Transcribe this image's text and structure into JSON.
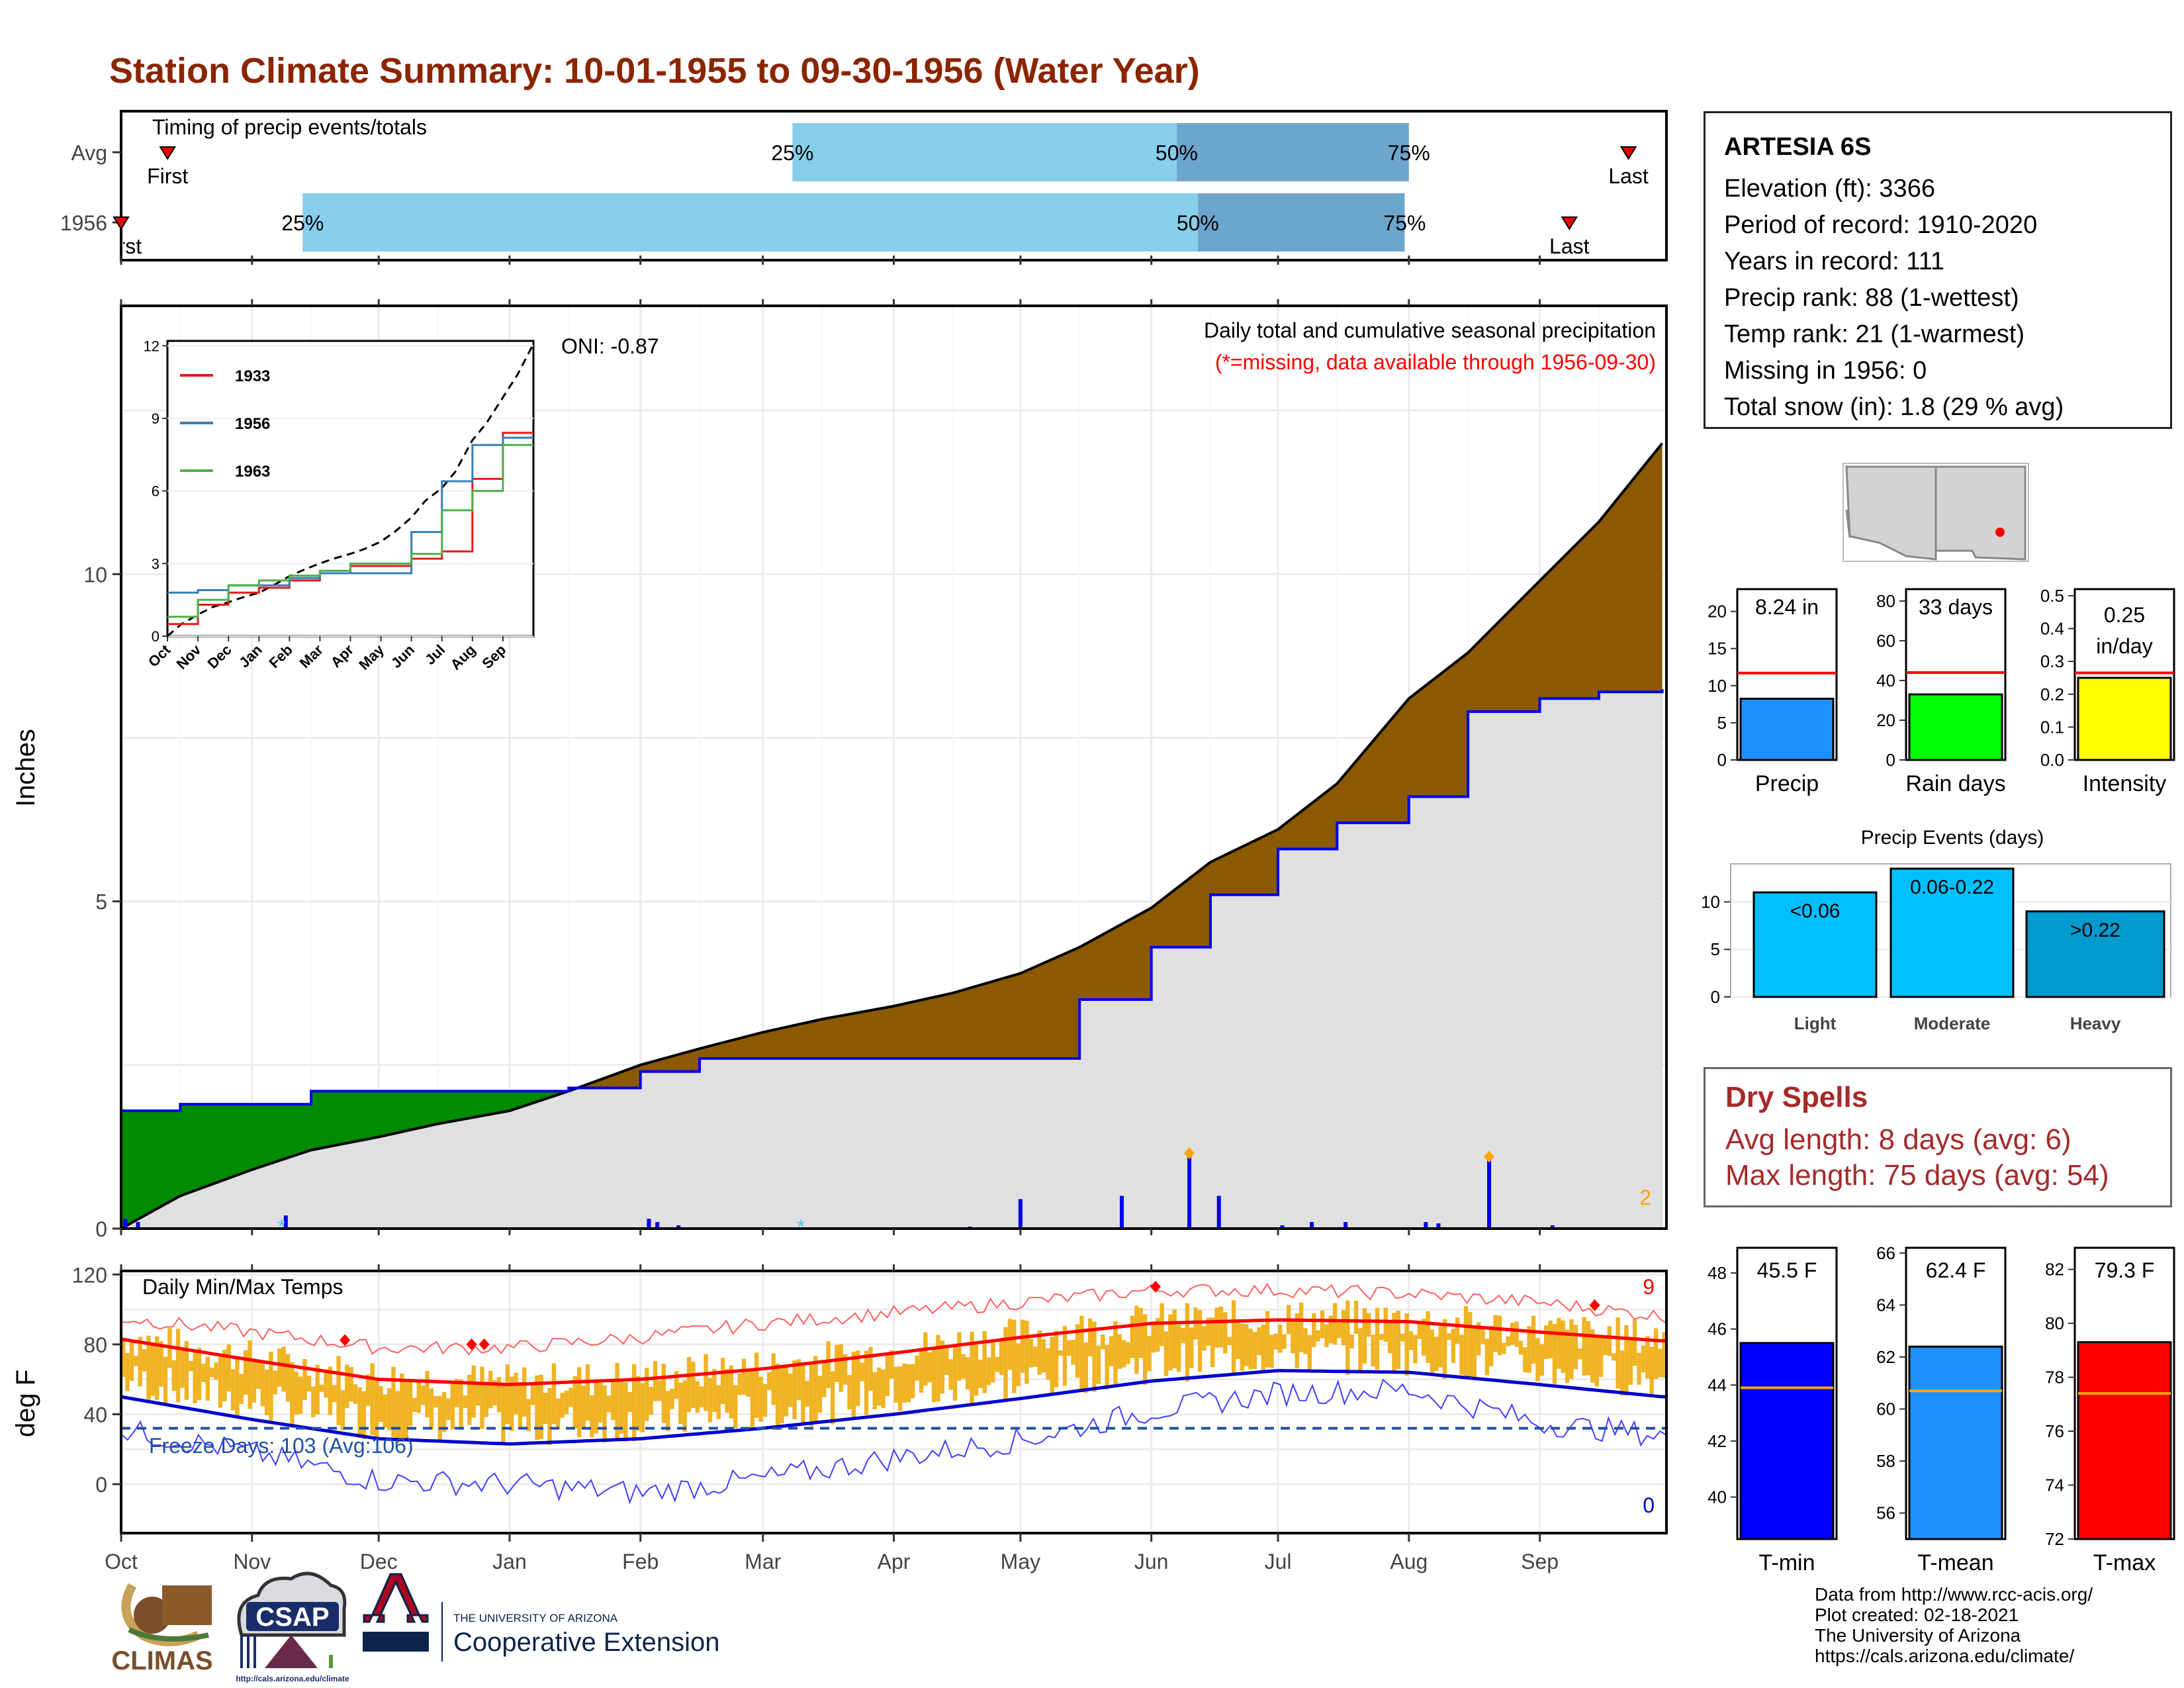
{
  "page": {
    "title": "Station Climate Summary: 10-01-1955 to 09-30-1956 (Water Year)",
    "title_color": "#8B2500"
  },
  "station": {
    "name": "ARTESIA 6S",
    "lines": [
      "Elevation (ft): 3366",
      "Period of record: 1910-2020",
      "Years in record: 111",
      "Precip rank: 88 (1-wettest)",
      "Temp rank: 21 (1-warmest)",
      "Missing in 1956: 0",
      "Total snow (in): 1.8 (29 % avg)"
    ]
  },
  "timing": {
    "title": "Timing of precip events/totals",
    "rows": [
      {
        "label": "Avg",
        "first_label": "First",
        "last_label": "Last",
        "first_date": "1955-10-12",
        "last_date": "1956-09-22",
        "p25": "1956-03-08",
        "p50": "1956-06-07",
        "p75": "1956-08-01"
      },
      {
        "label": "1956",
        "first_label": "First",
        "last_label": "Last",
        "first_date": "1955-10-01",
        "last_date": "1956-09-08",
        "p25": "1955-11-13",
        "p50": "1956-06-12",
        "p75": "1956-07-31"
      }
    ],
    "pct_labels": [
      "25%",
      "50%",
      "75%"
    ],
    "colors": {
      "early": "#87CEEB",
      "late": "#6CA6CD"
    }
  },
  "precip_panel": {
    "y_label": "Inches",
    "title": "Daily total and cumulative seasonal precipitation",
    "missing_note": "(*=missing, data available through 1956-09-30)",
    "oni": "ONI: -0.87",
    "count_label": "2"
  },
  "inset": {
    "legend": [
      "1933",
      "1956",
      "1963"
    ],
    "legend_colors": [
      "#e41a1c",
      "#377eb8",
      "#4daf4a"
    ],
    "ticks": [
      "0",
      "3",
      "6",
      "9",
      "12"
    ],
    "months": [
      "Oct",
      "Nov",
      "Dec",
      "Jan",
      "Feb",
      "Mar",
      "Apr",
      "May",
      "Jun",
      "Jul",
      "Aug",
      "Sep"
    ]
  },
  "temp_panel": {
    "y_label": "deg F",
    "title": "Daily Min/Max Temps",
    "freeze_label": "Freeze Days: 103 (Avg:106)",
    "max_count": "9",
    "min_count": "0"
  },
  "x_months": [
    "Oct",
    "Nov",
    "Dec",
    "Jan",
    "Feb",
    "Mar",
    "Apr",
    "May",
    "Jun",
    "Jul",
    "Aug",
    "Sep"
  ],
  "mini_bars": [
    {
      "title": "Precip",
      "label": "8.24 in",
      "value": 8.24,
      "avg": 11.7,
      "ymax": 23,
      "ticks": [
        "0",
        "5",
        "10",
        "15",
        "20"
      ],
      "tickvals": [
        0,
        5,
        10,
        15,
        20
      ],
      "color": "#1E90FF"
    },
    {
      "title": "Rain days",
      "label": "33 days",
      "value": 33,
      "avg": 44,
      "ymax": 86,
      "ticks": [
        "0",
        "20",
        "40",
        "60",
        "80"
      ],
      "tickvals": [
        0,
        20,
        40,
        60,
        80
      ],
      "color": "#00FF00"
    },
    {
      "title": "Intensity",
      "label": "0.25 in/day",
      "label_a": "0.25",
      "label_b": "in/day",
      "value": 0.25,
      "avg": 0.265,
      "ymax": 0.52,
      "ticks": [
        "0.0",
        "0.1",
        "0.2",
        "0.3",
        "0.4",
        "0.5"
      ],
      "tickvals": [
        0,
        0.1,
        0.2,
        0.3,
        0.4,
        0.5
      ],
      "color": "#FFFF00"
    }
  ],
  "events": {
    "title": "Precip Events (days)",
    "categories": [
      "Light",
      "Moderate",
      "Heavy"
    ],
    "labels": [
      "<0.06",
      "0.06-0.22",
      ">0.22"
    ],
    "values": [
      11,
      13.5,
      9
    ],
    "colors": [
      "#00BFFF",
      "#00BFFF",
      "#009ACD"
    ],
    "ticks": [
      "0",
      "5",
      "10"
    ]
  },
  "dry_spells": {
    "title": "Dry Spells",
    "avg_length": "Avg length: 8 days (avg: 6)",
    "max_length": "Max length: 75 days (avg: 54)"
  },
  "temp_bars": [
    {
      "title": "T-min",
      "label": "45.5 F",
      "value": 45.5,
      "avg": 43.9,
      "ymin": 38.5,
      "ymax": 48.9,
      "ticks": [
        "40",
        "42",
        "44",
        "46",
        "48"
      ],
      "tickvals": [
        40,
        42,
        44,
        46,
        48
      ],
      "color": "#0000FF"
    },
    {
      "title": "T-mean",
      "label": "62.4 F",
      "value": 62.4,
      "avg": 60.7,
      "ymin": 55.0,
      "ymax": 66.2,
      "ticks": [
        "56",
        "58",
        "60",
        "62",
        "64",
        "66"
      ],
      "tickvals": [
        56,
        58,
        60,
        62,
        64,
        66
      ],
      "color": "#1E90FF"
    },
    {
      "title": "T-max",
      "label": "79.3 F",
      "value": 79.3,
      "avg": 77.4,
      "ymin": 72.0,
      "ymax": 82.8,
      "ticks": [
        "72",
        "74",
        "76",
        "78",
        "80",
        "82"
      ],
      "tickvals": [
        72,
        74,
        76,
        78,
        80,
        82
      ],
      "color": "#FF0000"
    }
  ],
  "chart_data": [
    {
      "type": "area",
      "title": "Daily total and cumulative seasonal precipitation",
      "ylabel": "Inches",
      "ylim": [
        0,
        12
      ],
      "x": [
        "1955-10-01",
        "1955-10-15",
        "1955-11-01",
        "1955-11-15",
        "1955-12-01",
        "1955-12-15",
        "1956-01-01",
        "1956-01-15",
        "1956-02-01",
        "1956-02-15",
        "1956-03-01",
        "1956-03-15",
        "1956-04-01",
        "1956-04-15",
        "1956-05-01",
        "1956-05-15",
        "1956-06-01",
        "1956-06-15",
        "1956-07-01",
        "1956-07-15",
        "1956-08-01",
        "1956-08-15",
        "1956-09-01",
        "1956-09-15",
        "1956-09-30"
      ],
      "series": [
        {
          "name": "Average cumulative",
          "values": [
            0.0,
            0.5,
            0.9,
            1.2,
            1.4,
            1.6,
            1.8,
            2.1,
            2.5,
            2.75,
            3.0,
            3.2,
            3.4,
            3.6,
            3.9,
            4.3,
            4.9,
            5.6,
            6.1,
            6.8,
            8.1,
            8.8,
            9.9,
            10.8,
            12.0
          ]
        },
        {
          "name": "1956 cumulative",
          "values": [
            1.8,
            1.9,
            1.9,
            2.1,
            2.1,
            2.1,
            2.1,
            2.15,
            2.4,
            2.6,
            2.6,
            2.6,
            2.6,
            2.6,
            2.6,
            3.5,
            4.3,
            5.1,
            5.8,
            6.2,
            6.6,
            7.9,
            8.1,
            8.2,
            8.24
          ]
        }
      ],
      "daily_precip": [
        {
          "date": "1955-10-02",
          "value": 0.15
        },
        {
          "date": "1955-10-05",
          "value": 0.1
        },
        {
          "date": "1955-11-09",
          "value": 0.2
        },
        {
          "date": "1956-01-23",
          "value": 0.02
        },
        {
          "date": "1956-02-03",
          "value": 0.15
        },
        {
          "date": "1956-02-05",
          "value": 0.1
        },
        {
          "date": "1956-02-10",
          "value": 0.05
        },
        {
          "date": "1956-04-19",
          "value": 0.03
        },
        {
          "date": "1956-05-01",
          "value": 0.45
        },
        {
          "date": "1956-05-25",
          "value": 0.5
        },
        {
          "date": "1956-06-10",
          "value": 1.15
        },
        {
          "date": "1956-06-17",
          "value": 0.5
        },
        {
          "date": "1956-07-02",
          "value": 0.05
        },
        {
          "date": "1956-07-09",
          "value": 0.1
        },
        {
          "date": "1956-07-17",
          "value": 0.1
        },
        {
          "date": "1956-08-05",
          "value": 0.1
        },
        {
          "date": "1956-08-08",
          "value": 0.08
        },
        {
          "date": "1956-08-20",
          "value": 1.1
        },
        {
          "date": "1956-09-04",
          "value": 0.05
        }
      ]
    },
    {
      "type": "line",
      "title": "Daily Min/Max Temps",
      "ylabel": "deg F",
      "ylim": [
        -20,
        120
      ],
      "x": [
        "1955-10-01",
        "1955-11-01",
        "1955-12-01",
        "1956-01-01",
        "1956-02-01",
        "1956-03-01",
        "1956-04-01",
        "1956-05-01",
        "1956-06-01",
        "1956-07-01",
        "1956-08-01",
        "1956-09-01",
        "1956-09-30"
      ],
      "series": [
        {
          "name": "Avg max",
          "values": [
            83,
            71,
            60,
            57,
            60,
            66,
            75,
            84,
            92,
            94,
            93,
            87,
            82
          ]
        },
        {
          "name": "Avg min",
          "values": [
            50,
            37,
            26,
            23,
            26,
            32,
            40,
            49,
            59,
            65,
            64,
            57,
            50
          ]
        },
        {
          "name": "Record high",
          "values": [
            95,
            87,
            78,
            78,
            84,
            92,
            98,
            104,
            111,
            111,
            109,
            104,
            96
          ]
        },
        {
          "name": "Record low",
          "values": [
            31,
            18,
            2,
            0,
            -5,
            3,
            15,
            25,
            42,
            52,
            54,
            35,
            28
          ]
        }
      ],
      "freeze_line": 32
    },
    {
      "type": "line",
      "title": "Inset cumulative precipitation",
      "ylim": [
        0,
        12
      ],
      "x": [
        "Oct",
        "Nov",
        "Dec",
        "Jan",
        "Feb",
        "Mar",
        "Apr",
        "May",
        "Jun",
        "Jul",
        "Aug",
        "Sep"
      ],
      "series": [
        {
          "name": "1933",
          "values": [
            0.5,
            1.3,
            1.8,
            2.0,
            2.3,
            2.6,
            2.9,
            2.9,
            3.2,
            3.5,
            6.5,
            8.4
          ]
        },
        {
          "name": "1956",
          "values": [
            1.8,
            1.9,
            2.1,
            2.1,
            2.4,
            2.6,
            2.6,
            2.6,
            4.3,
            6.4,
            7.9,
            8.2
          ]
        },
        {
          "name": "1963",
          "values": [
            0.8,
            1.5,
            2.1,
            2.3,
            2.5,
            2.7,
            3.0,
            3.0,
            3.4,
            5.2,
            6.0,
            7.9
          ]
        }
      ]
    }
  ],
  "footer": {
    "lines": [
      "Data from http://www.rcc-acis.org/",
      "Plot created: 02-18-2021",
      "The University of Arizona",
      "https://cals.arizona.edu/climate/"
    ],
    "logo1": "CLIMAS",
    "logo2": "CSAP",
    "logo2_url": "http://cals.arizona.edu/climate",
    "logo3_top": "THE UNIVERSITY OF ARIZONA",
    "logo3_bottom": "Cooperative Extension"
  }
}
